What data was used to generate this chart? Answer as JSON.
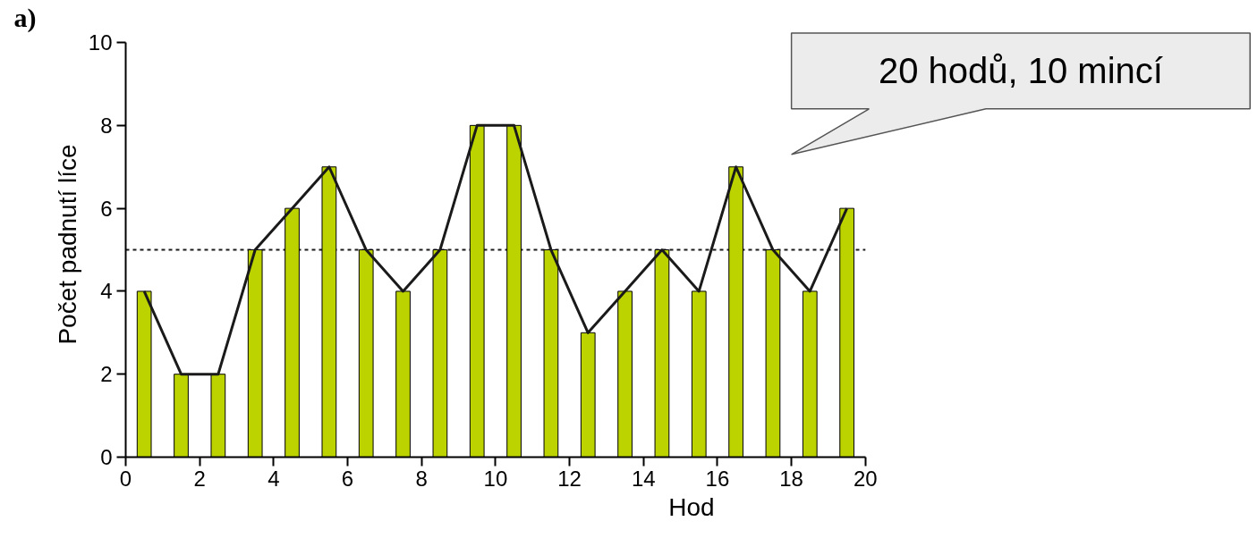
{
  "chart_data": {
    "type": "bar",
    "title": "a)",
    "xlabel": "Hod",
    "ylabel": "Počet padnutí líce",
    "annotations": [
      "20 hodů, 10 mincí"
    ],
    "series": [
      {
        "color": "#bcd300",
        "x": [
          0.5,
          1.5,
          2.5,
          3.5,
          4.5,
          5.5,
          6.5,
          7.5,
          8.5,
          9.5,
          10.5,
          11.5,
          12.5,
          13.5,
          14.5,
          15.5,
          16.5,
          17.5,
          18.5,
          19.5
        ],
        "values": [
          4,
          2,
          2,
          5,
          6,
          7,
          5,
          4,
          5,
          8,
          8,
          5,
          3,
          4,
          5,
          4,
          7,
          5,
          4,
          6
        ]
      },
      {
        "type": "line",
        "color": "#1a1a1a",
        "x": [
          0.5,
          1.5,
          2.5,
          3.5,
          4.5,
          5.5,
          6.5,
          7.5,
          8.5,
          9.5,
          10.5,
          11.5,
          12.5,
          13.5,
          14.5,
          15.5,
          16.5,
          17.5,
          18.5,
          19.5
        ],
        "values": [
          4,
          2,
          2,
          5,
          6,
          7,
          5,
          4,
          5,
          8,
          8,
          5,
          3,
          4,
          5,
          4,
          7,
          5,
          4,
          6
        ]
      }
    ],
    "xlim": [
      0,
      20
    ],
    "xticks": [
      0,
      2,
      4,
      6,
      8,
      10,
      12,
      14,
      16,
      18,
      20
    ],
    "ylim": [
      0,
      10
    ],
    "yticks": [
      0,
      2,
      4,
      6,
      8,
      10
    ],
    "ref_lines": [
      {
        "axis": "y",
        "value": 5,
        "label": null,
        "color": "#1a1a1a",
        "line_style": "dotted"
      }
    ],
    "grid": false,
    "marker": "none",
    "line_style": "solid"
  }
}
